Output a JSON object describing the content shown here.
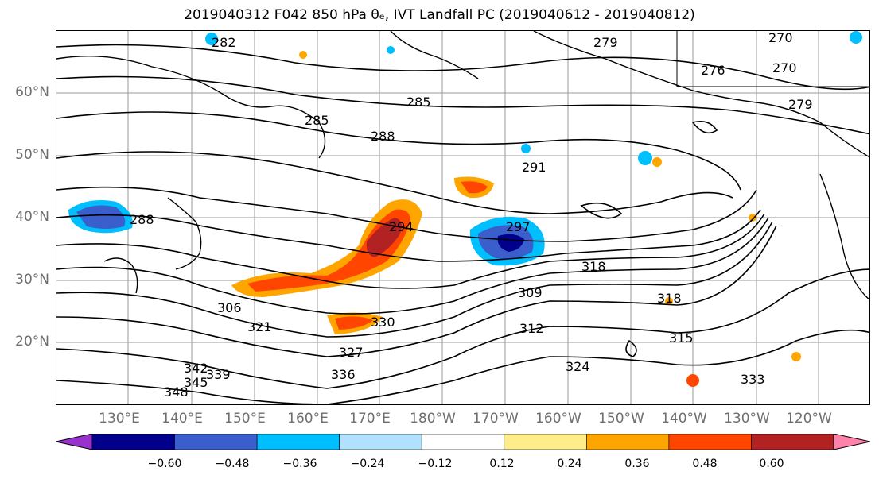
{
  "title": "2019040312 F042 850 hPa θₑ, IVT Landfall PC (2019040612 - 2019040812)",
  "lat_labels": [
    "60°N",
    "50°N",
    "40°N",
    "30°N",
    "20°N"
  ],
  "lon_labels": [
    "130°E",
    "140°E",
    "150°E",
    "160°E",
    "170°E",
    "180°W",
    "170°W",
    "160°W",
    "150°W",
    "140°W",
    "130°W",
    "120°W"
  ],
  "colorbar": {
    "ticks": [
      "−0.60",
      "−0.48",
      "−0.36",
      "−0.24",
      "−0.12",
      "0.12",
      "0.24",
      "0.36",
      "0.48",
      "0.60"
    ],
    "colors": [
      "#9932CC",
      "#00008B",
      "#3A5FCD",
      "#00BFFF",
      "#B0E2FF",
      "#FFFFFF",
      "#FFEC8B",
      "#FFA500",
      "#FF4500",
      "#B22222",
      "#FF82AB"
    ]
  },
  "contour_labels": [
    "282",
    "279",
    "276",
    "270",
    "270",
    "279",
    "285",
    "285",
    "288",
    "288",
    "291",
    "294",
    "297",
    "309",
    "306",
    "321",
    "318",
    "318",
    "315",
    "312",
    "324",
    "327",
    "330",
    "333",
    "336",
    "339",
    "342",
    "345",
    "348"
  ]
}
